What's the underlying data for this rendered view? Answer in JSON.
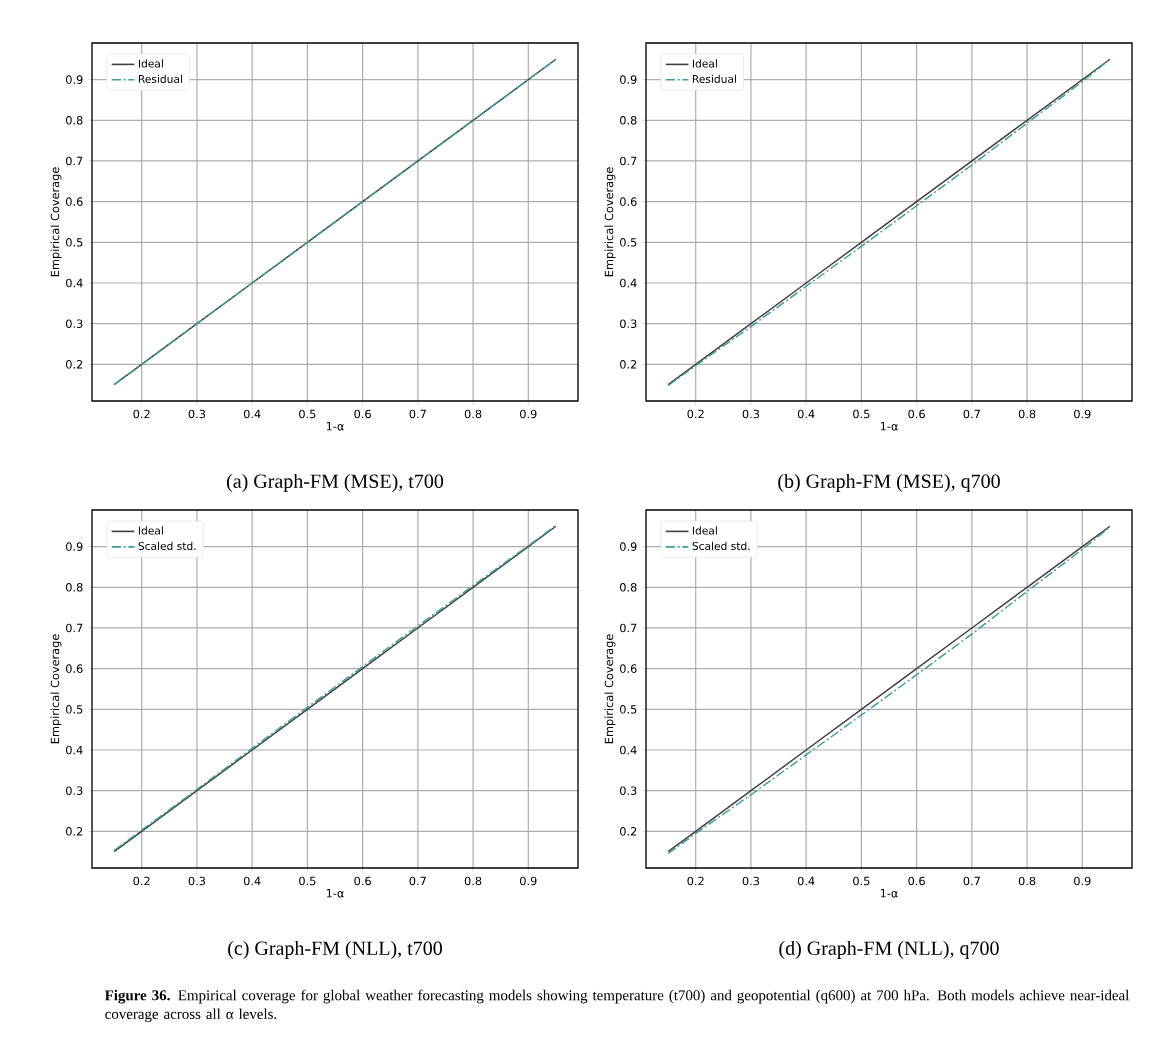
{
  "chart_data": [
    {
      "type": "line",
      "x": [
        0.15,
        0.2,
        0.3,
        0.4,
        0.5,
        0.6,
        0.7,
        0.8,
        0.9,
        0.95
      ],
      "series": [
        {
          "name": "Ideal",
          "color": "#404040",
          "line_style": "solid",
          "values": [
            0.15,
            0.2,
            0.3,
            0.4,
            0.5,
            0.6,
            0.7,
            0.8,
            0.9,
            0.95
          ]
        },
        {
          "name": "Residual",
          "color": "#3a9e9a",
          "line_style": "dashdot",
          "values": [
            0.15,
            0.2,
            0.3,
            0.4,
            0.5,
            0.6,
            0.7,
            0.8,
            0.9,
            0.95
          ]
        }
      ],
      "xlabel": "1-α",
      "ylabel": "Empirical Coverage",
      "xlim": [
        0.11,
        0.99
      ],
      "ylim": [
        0.11,
        0.99
      ],
      "xticks": [
        0.2,
        0.3,
        0.4,
        0.5,
        0.6,
        0.7,
        0.8,
        0.9
      ],
      "yticks": [
        0.2,
        0.3,
        0.4,
        0.5,
        0.6,
        0.7,
        0.8,
        0.9
      ],
      "grid": true,
      "legend": "top left",
      "annotations": [
        "(a) Graph-FM (MSE), t700"
      ]
    },
    {
      "type": "line",
      "x": [
        0.15,
        0.2,
        0.3,
        0.4,
        0.5,
        0.6,
        0.7,
        0.8,
        0.9,
        0.95
      ],
      "series": [
        {
          "name": "Ideal",
          "color": "#404040",
          "line_style": "solid",
          "values": [
            0.15,
            0.2,
            0.3,
            0.4,
            0.5,
            0.6,
            0.7,
            0.8,
            0.9,
            0.95
          ]
        },
        {
          "name": "Residual",
          "color": "#3a9e9a",
          "line_style": "dashdot",
          "values": [
            0.148,
            0.197,
            0.293,
            0.392,
            0.49,
            0.59,
            0.69,
            0.793,
            0.895,
            0.95
          ]
        }
      ],
      "xlabel": "1-α",
      "ylabel": "Empirical Coverage",
      "xlim": [
        0.11,
        0.99
      ],
      "ylim": [
        0.11,
        0.99
      ],
      "xticks": [
        0.2,
        0.3,
        0.4,
        0.5,
        0.6,
        0.7,
        0.8,
        0.9
      ],
      "yticks": [
        0.2,
        0.3,
        0.4,
        0.5,
        0.6,
        0.7,
        0.8,
        0.9
      ],
      "grid": true,
      "legend": "top left",
      "annotations": [
        "(b) Graph-FM (MSE), q700"
      ]
    },
    {
      "type": "line",
      "x": [
        0.15,
        0.2,
        0.3,
        0.4,
        0.5,
        0.6,
        0.7,
        0.8,
        0.9,
        0.95
      ],
      "series": [
        {
          "name": "Ideal",
          "color": "#404040",
          "line_style": "solid",
          "values": [
            0.15,
            0.2,
            0.3,
            0.4,
            0.5,
            0.6,
            0.7,
            0.8,
            0.9,
            0.95
          ]
        },
        {
          "name": "Scaled std.",
          "color": "#3a9e9a",
          "line_style": "dashdot",
          "values": [
            0.153,
            0.203,
            0.303,
            0.404,
            0.505,
            0.605,
            0.705,
            0.804,
            0.902,
            0.952
          ]
        }
      ],
      "xlabel": "1-α",
      "ylabel": "Empirical Coverage",
      "xlim": [
        0.11,
        0.99
      ],
      "ylim": [
        0.11,
        0.99
      ],
      "xticks": [
        0.2,
        0.3,
        0.4,
        0.5,
        0.6,
        0.7,
        0.8,
        0.9
      ],
      "yticks": [
        0.2,
        0.3,
        0.4,
        0.5,
        0.6,
        0.7,
        0.8,
        0.9
      ],
      "grid": true,
      "legend": "top left",
      "annotations": [
        "(c) Graph-FM (NLL), t700"
      ]
    },
    {
      "type": "line",
      "x": [
        0.15,
        0.2,
        0.3,
        0.4,
        0.5,
        0.6,
        0.7,
        0.8,
        0.9,
        0.95
      ],
      "series": [
        {
          "name": "Ideal",
          "color": "#404040",
          "line_style": "solid",
          "values": [
            0.15,
            0.2,
            0.3,
            0.4,
            0.5,
            0.6,
            0.7,
            0.8,
            0.9,
            0.95
          ]
        },
        {
          "name": "Scaled std.",
          "color": "#3a9e9a",
          "line_style": "dashdot",
          "values": [
            0.145,
            0.195,
            0.29,
            0.388,
            0.486,
            0.585,
            0.685,
            0.79,
            0.893,
            0.948
          ]
        }
      ],
      "xlabel": "1-α",
      "ylabel": "Empirical Coverage",
      "xlim": [
        0.11,
        0.99
      ],
      "ylim": [
        0.11,
        0.99
      ],
      "xticks": [
        0.2,
        0.3,
        0.4,
        0.5,
        0.6,
        0.7,
        0.8,
        0.9
      ],
      "yticks": [
        0.2,
        0.3,
        0.4,
        0.5,
        0.6,
        0.7,
        0.8,
        0.9
      ],
      "grid": true,
      "legend": "top left",
      "annotations": [
        "(d) Graph-FM (NLL), q700",
        "**Figure 36.** Empirical coverage for global weather forecasting models showing temperature (t700) and geopotential (q600) at 700 hPa. Both models achieve near-ideal coverage across all α levels."
      ]
    }
  ]
}
